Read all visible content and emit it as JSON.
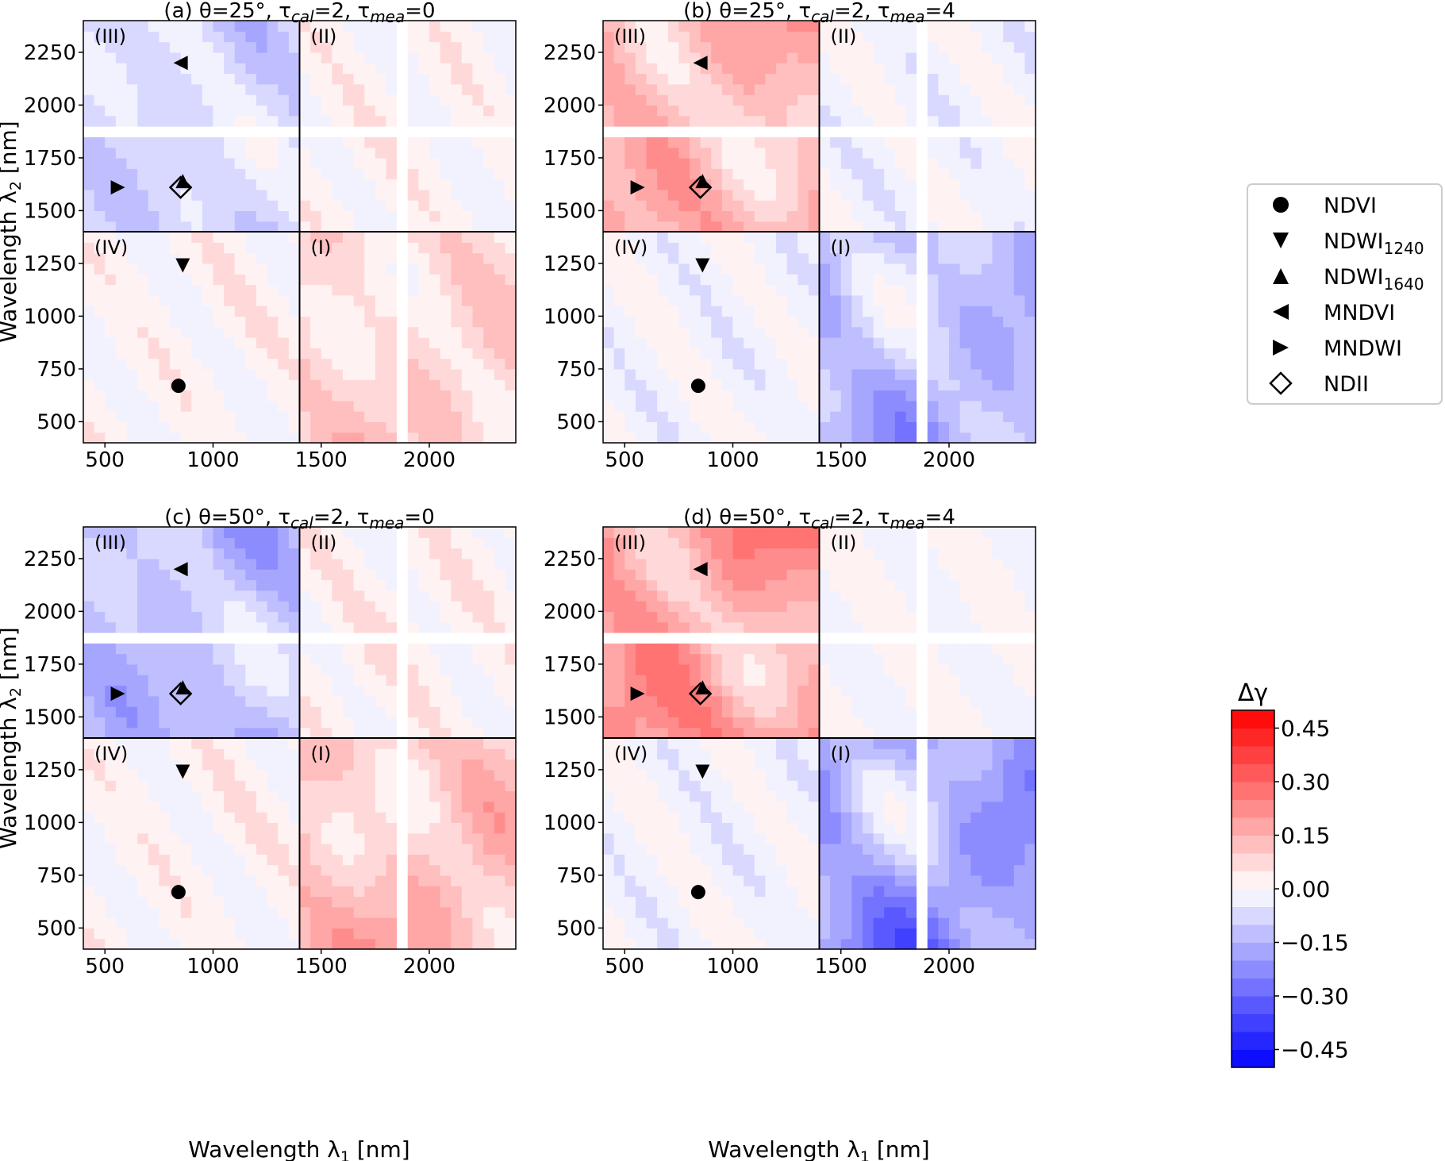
{
  "chart_data": {
    "type": "heatmap",
    "x_ticks": [
      500,
      1000,
      1500,
      2000
    ],
    "y_ticks": [
      500,
      750,
      1000,
      1250,
      1500,
      1750,
      2000,
      2250
    ],
    "xlim": [
      400,
      2400
    ],
    "ylim": [
      400,
      2400
    ],
    "region_break": 1400,
    "gap_bands": [
      [
        1830,
        1920
      ]
    ],
    "region_labels": [
      "(III)",
      "(II)",
      "(IV)",
      "(I)"
    ],
    "xlabel_main": "Wavelength λ",
    "xlabel_sub": "1",
    "xlabel_unit": " [nm]",
    "ylabel_main": "Wavelength λ",
    "ylabel_sub": "2",
    "ylabel_unit": " [nm]",
    "index_markers": [
      {
        "name": "NDVI",
        "marker": "circle",
        "x": 840,
        "y": 670
      },
      {
        "name": "NDWI",
        "sub": "1240",
        "marker": "triangle-down",
        "x": 860,
        "y": 1240
      },
      {
        "name": "NDWI",
        "sub": "1640",
        "marker": "triangle-up",
        "x": 860,
        "y": 1640
      },
      {
        "name": "MNDVI",
        "marker": "triangle-left",
        "x": 850,
        "y": 2200
      },
      {
        "name": "MNDWI",
        "marker": "triangle-right",
        "x": 560,
        "y": 1610
      },
      {
        "name": "NDII",
        "marker": "diamond",
        "x": 850,
        "y": 1610
      }
    ],
    "panels": [
      {
        "label": "(a) θ=25°, τ",
        "cal": "cal",
        "mid": "=2, τ",
        "mea": "mea",
        "end": "=0",
        "region_mean": {
          "III": -0.12,
          "II": 0.02,
          "IV": 0.02,
          "I": 0.12
        }
      },
      {
        "label": "(b) θ=25°, τ",
        "cal": "cal",
        "mid": "=2, τ",
        "mea": "mea",
        "end": "=4",
        "region_mean": {
          "III": 0.22,
          "II": -0.02,
          "IV": -0.02,
          "I": -0.2
        }
      },
      {
        "label": "(c) θ=50°, τ",
        "cal": "cal",
        "mid": "=2, τ",
        "mea": "mea",
        "end": "=0",
        "region_mean": {
          "III": -0.2,
          "II": 0.03,
          "IV": 0.02,
          "I": 0.18
        }
      },
      {
        "label": "(d) θ=50°, τ",
        "cal": "cal",
        "mid": "=2, τ",
        "mea": "mea",
        "end": "=4",
        "region_mean": {
          "III": 0.3,
          "II": 0.0,
          "IV": -0.02,
          "I": -0.28
        }
      }
    ],
    "colorbar": {
      "title": "Δγ",
      "min": -0.5,
      "max": 0.5,
      "levels": 20,
      "ticks": [
        0.45,
        0.3,
        0.15,
        0.0,
        -0.15,
        -0.3,
        -0.45
      ],
      "tick_labels": [
        "0.45",
        "0.30",
        "0.15",
        "0.00",
        "−0.15",
        "−0.30",
        "−0.45"
      ],
      "cmap": "bwr"
    },
    "colors": {
      "low": "#0000ff",
      "mid": "#ffffff",
      "high": "#ff0000"
    },
    "legend_placement": "right"
  }
}
